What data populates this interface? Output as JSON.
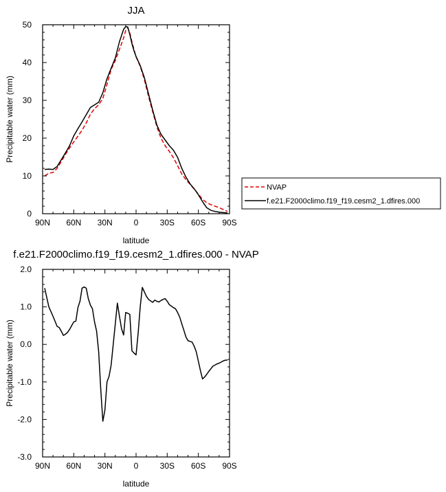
{
  "chart_data": [
    {
      "type": "line",
      "title": "JJA",
      "xlabel": "latitude",
      "ylabel": "Precipitable water (mm)",
      "xlim": [
        90,
        -90
      ],
      "ylim": [
        0,
        50
      ],
      "xticks": [
        90,
        60,
        30,
        0,
        -30,
        -60,
        -90
      ],
      "xtick_labels": [
        "90N",
        "60N",
        "30N",
        "0",
        "30S",
        "60S",
        "90S"
      ],
      "yticks": [
        0,
        10,
        20,
        30,
        40,
        50
      ],
      "ytick_labels": [
        "0",
        "10",
        "20",
        "30",
        "40",
        "50"
      ],
      "legend_position": "right",
      "grid": false,
      "series": [
        {
          "name": "NVAP",
          "color": "#e00000",
          "dash": "dashed",
          "x": [
            88,
            84,
            80,
            76,
            72,
            68,
            64,
            60,
            56,
            52,
            48,
            44,
            40,
            36,
            32,
            28,
            24,
            20,
            16,
            12,
            10,
            8,
            6,
            4,
            2,
            0,
            -4,
            -8,
            -12,
            -16,
            -20,
            -24,
            -28,
            -32,
            -36,
            -40,
            -44,
            -48,
            -52,
            -56,
            -60,
            -64,
            -68,
            -72,
            -76,
            -80,
            -84,
            -88
          ],
          "y": [
            10.0,
            10.7,
            10.9,
            12.0,
            13.8,
            15.7,
            17.4,
            19.0,
            20.5,
            22.1,
            24.0,
            26.3,
            27.8,
            28.8,
            30.5,
            34.2,
            38.2,
            40.5,
            43.5,
            46.5,
            48.5,
            49.2,
            47.8,
            45.5,
            43.5,
            41.5,
            39.0,
            35.5,
            31.0,
            27.0,
            23.0,
            20.0,
            18.0,
            16.5,
            14.8,
            12.7,
            10.5,
            9.0,
            7.8,
            6.5,
            5.2,
            3.8,
            2.9,
            2.4,
            2.0,
            1.6,
            1.1,
            0.6
          ]
        },
        {
          "name": "f.e21.F2000climo.f19_f19.cesm2_1.dfires.000",
          "color": "#000000",
          "dash": "solid",
          "x": [
            88,
            84,
            80,
            76,
            72,
            68,
            64,
            60,
            56,
            52,
            48,
            44,
            40,
            36,
            32,
            28,
            24,
            20,
            16,
            12,
            10,
            8,
            6,
            4,
            2,
            0,
            -4,
            -8,
            -12,
            -16,
            -20,
            -24,
            -28,
            -32,
            -36,
            -40,
            -44,
            -48,
            -52,
            -56,
            -60,
            -64,
            -68,
            -72,
            -76,
            -80,
            -84,
            -88
          ],
          "y": [
            11.7,
            11.8,
            11.7,
            12.5,
            14.3,
            16.1,
            18.0,
            20.6,
            22.5,
            24.3,
            26.2,
            28.1,
            28.8,
            29.5,
            32.0,
            35.7,
            38.5,
            41.2,
            45.5,
            48.8,
            49.5,
            49.4,
            47.4,
            45.0,
            43.1,
            41.6,
            39.2,
            36.0,
            31.7,
            27.4,
            23.5,
            21.0,
            19.5,
            18.0,
            16.8,
            14.9,
            12.0,
            9.7,
            7.9,
            6.6,
            5.0,
            3.2,
            1.6,
            0.9,
            0.6,
            0.4,
            0.3,
            0.2
          ]
        }
      ]
    },
    {
      "type": "line",
      "title": "f.e21.F2000climo.f19_f19.cesm2_1.dfires.000 - NVAP",
      "xlabel": "latitude",
      "ylabel": "Precipitable water (mm)",
      "xlim": [
        90,
        -90
      ],
      "ylim": [
        -3.0,
        2.0
      ],
      "xticks": [
        90,
        60,
        30,
        0,
        -30,
        -60,
        -90
      ],
      "xtick_labels": [
        "90N",
        "60N",
        "30N",
        "0",
        "30S",
        "60S",
        "90S"
      ],
      "yticks": [
        -3,
        -2,
        -1,
        0,
        1,
        2
      ],
      "ytick_labels": [
        "-3.0",
        "-2.0",
        "-1.0",
        "0.0",
        "1.0",
        "2.0"
      ],
      "grid": false,
      "series": [
        {
          "color": "#000000",
          "dash": "solid",
          "x": [
            88,
            86,
            84,
            80,
            76,
            74,
            72,
            70,
            68,
            66,
            64,
            62,
            60,
            58,
            56,
            54,
            52,
            50,
            48,
            46,
            44,
            42,
            40,
            38,
            36,
            34,
            32,
            30,
            28,
            26,
            24,
            22,
            20,
            18,
            16,
            14,
            12,
            10,
            8,
            6,
            4,
            2,
            0,
            -2,
            -4,
            -6,
            -8,
            -10,
            -12,
            -14,
            -16,
            -18,
            -20,
            -22,
            -24,
            -26,
            -28,
            -30,
            -32,
            -34,
            -36,
            -38,
            -40,
            -42,
            -44,
            -46,
            -48,
            -50,
            -52,
            -54,
            -56,
            -58,
            -60,
            -62,
            -64,
            -66,
            -68,
            -70,
            -72,
            -74,
            -76,
            -78,
            -80,
            -82,
            -84,
            -86,
            -88
          ],
          "y": [
            1.5,
            1.25,
            1.0,
            0.75,
            0.48,
            0.45,
            0.35,
            0.24,
            0.27,
            0.32,
            0.4,
            0.5,
            0.6,
            0.62,
            0.98,
            1.15,
            1.5,
            1.53,
            1.5,
            1.22,
            1.05,
            0.95,
            0.6,
            0.35,
            -0.2,
            -1.2,
            -2.05,
            -1.75,
            -1.0,
            -0.85,
            -0.55,
            0.0,
            0.55,
            1.1,
            0.75,
            0.42,
            0.25,
            0.85,
            0.83,
            0.8,
            -0.17,
            -0.23,
            -0.28,
            0.3,
            1.0,
            1.52,
            1.4,
            1.28,
            1.2,
            1.16,
            1.12,
            1.18,
            1.15,
            1.13,
            1.17,
            1.2,
            1.22,
            1.15,
            1.06,
            1.02,
            0.98,
            0.95,
            0.85,
            0.73,
            0.55,
            0.38,
            0.2,
            0.1,
            0.08,
            0.06,
            -0.05,
            -0.2,
            -0.45,
            -0.7,
            -0.92,
            -0.87,
            -0.8,
            -0.72,
            -0.65,
            -0.58,
            -0.55,
            -0.52,
            -0.5,
            -0.47,
            -0.44,
            -0.42,
            -0.42
          ]
        }
      ]
    }
  ],
  "legend": {
    "items": [
      {
        "label": "NVAP",
        "color": "#e00000",
        "dash": "dashed"
      },
      {
        "label": "f.e21.F2000climo.f19_f19.cesm2_1.dfires.000",
        "color": "#000000",
        "dash": "solid"
      }
    ]
  }
}
